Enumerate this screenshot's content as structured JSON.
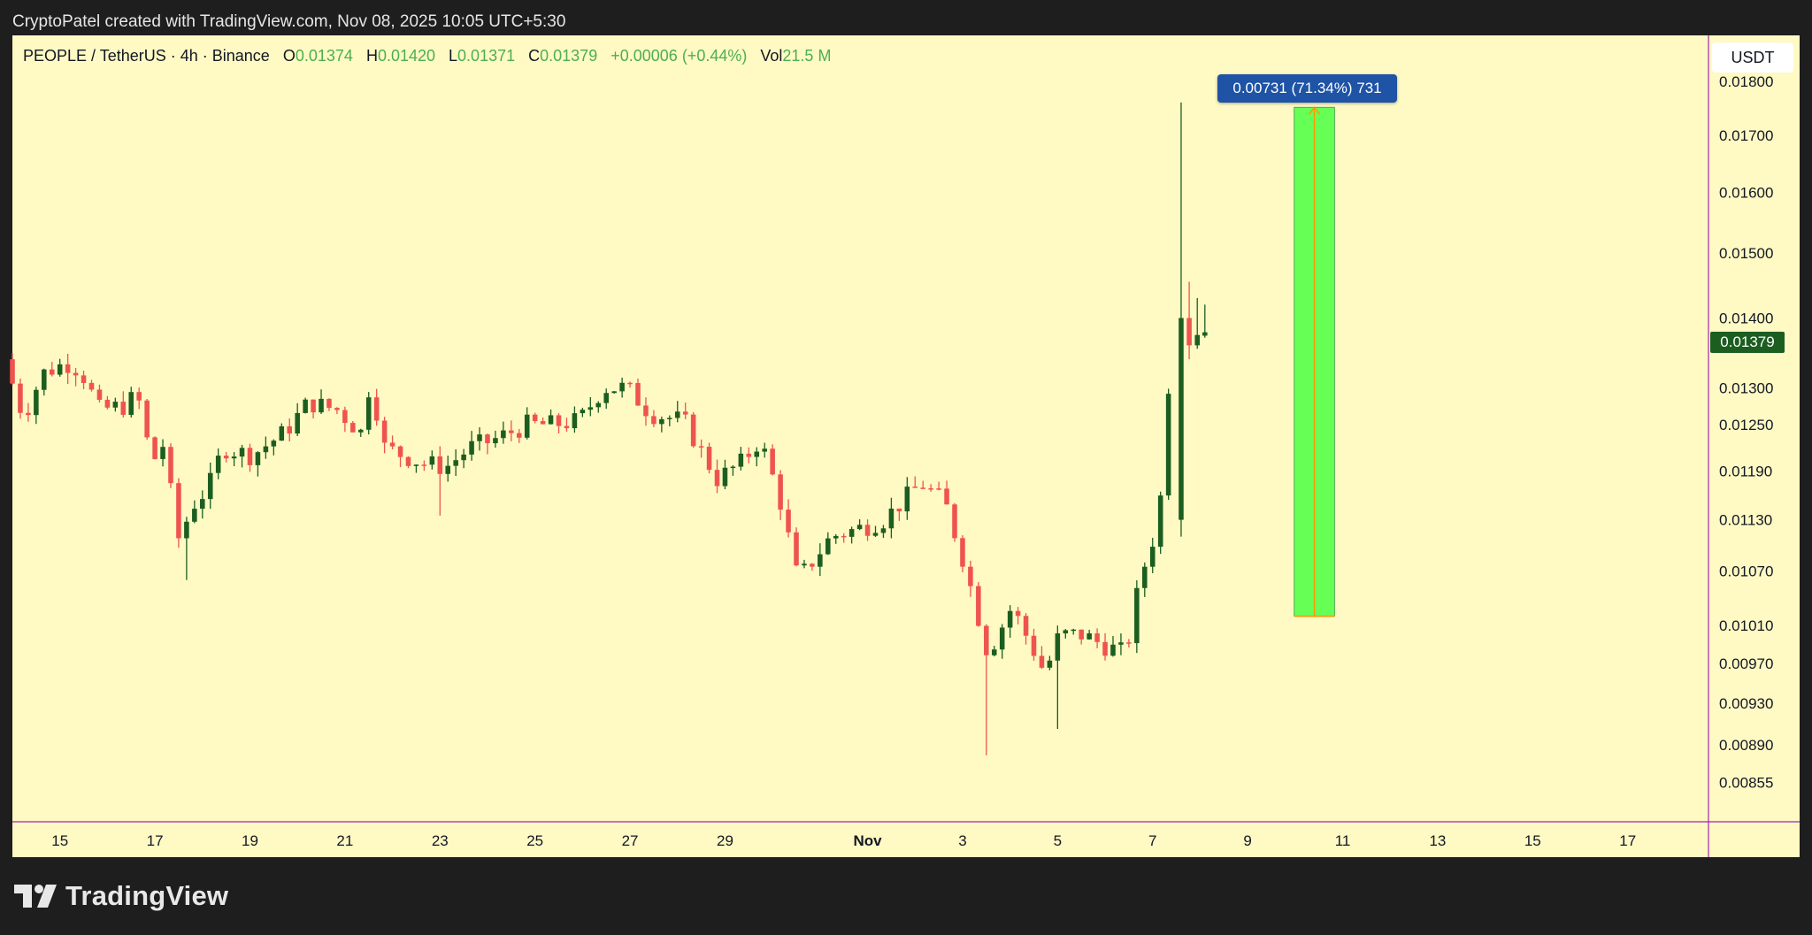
{
  "credit": "CryptoPatel created with TradingView.com, Nov 08, 2025 10:05 UTC+5:30",
  "legend": {
    "symbol": "PEOPLE / TetherUS · 4h · Binance",
    "open_label": "O",
    "open": "0.01374",
    "high_label": "H",
    "high": "0.01420",
    "low_label": "L",
    "low": "0.01371",
    "close_label": "C",
    "close": "0.01379",
    "change": "+0.00006 (+0.44%)",
    "vol_label": "Vol",
    "vol": "21.5 M"
  },
  "currency": "USDT",
  "measure_label": "0.00731 (71.34%) 731",
  "last_price": "0.01379",
  "brand": "TradingView",
  "colors": {
    "background": "#fff9c4",
    "up": "#1b5e20",
    "down": "#ef5350",
    "measure_fill": "#66ff55",
    "measure_line": "#ff9800",
    "axis_line": "#9c27b0"
  },
  "chart_data": {
    "type": "candlestick",
    "scale": "log",
    "ylim": [
      0.0082,
      0.0189
    ],
    "y_ticks": [
      "0.01800",
      "0.01700",
      "0.01600",
      "0.01500",
      "0.01400",
      "0.01300",
      "0.01250",
      "0.01190",
      "0.01130",
      "0.01070",
      "0.01010",
      "0.00970",
      "0.00930",
      "0.00890",
      "0.00855"
    ],
    "x_ticks": [
      {
        "label": "15",
        "day": 15
      },
      {
        "label": "17",
        "day": 17
      },
      {
        "label": "19",
        "day": 19
      },
      {
        "label": "21",
        "day": 21
      },
      {
        "label": "23",
        "day": 23
      },
      {
        "label": "25",
        "day": 25
      },
      {
        "label": "27",
        "day": 27
      },
      {
        "label": "29",
        "day": 29
      },
      {
        "label": "Nov",
        "day": 32
      },
      {
        "label": "3",
        "day": 34
      },
      {
        "label": "5",
        "day": 36
      },
      {
        "label": "7",
        "day": 38
      },
      {
        "label": "9",
        "day": 40
      },
      {
        "label": "11",
        "day": 42
      },
      {
        "label": "13",
        "day": 44
      },
      {
        "label": "15",
        "day": 46
      },
      {
        "label": "17",
        "day": 48
      }
    ],
    "x_range_days": [
      14.0,
      49.7
    ],
    "anchors": [
      {
        "day": 14.0,
        "price": 0.0134
      },
      {
        "day": 14.4,
        "price": 0.0126
      },
      {
        "day": 14.8,
        "price": 0.0132
      },
      {
        "day": 15.3,
        "price": 0.01335
      },
      {
        "day": 15.6,
        "price": 0.01325
      },
      {
        "day": 16.0,
        "price": 0.0127
      },
      {
        "day": 16.5,
        "price": 0.01275
      },
      {
        "day": 16.8,
        "price": 0.0129
      },
      {
        "day": 17.1,
        "price": 0.012
      },
      {
        "day": 17.4,
        "price": 0.0123
      },
      {
        "day": 17.6,
        "price": 0.011
      },
      {
        "day": 18.0,
        "price": 0.0115
      },
      {
        "day": 18.3,
        "price": 0.0117
      },
      {
        "day": 18.6,
        "price": 0.0122
      },
      {
        "day": 19.2,
        "price": 0.0121
      },
      {
        "day": 19.9,
        "price": 0.0124
      },
      {
        "day": 20.4,
        "price": 0.0128
      },
      {
        "day": 21.0,
        "price": 0.0127
      },
      {
        "day": 21.5,
        "price": 0.0124
      },
      {
        "day": 21.7,
        "price": 0.0131
      },
      {
        "day": 22.0,
        "price": 0.0122
      },
      {
        "day": 22.8,
        "price": 0.012
      },
      {
        "day": 23.3,
        "price": 0.01195
      },
      {
        "day": 23.8,
        "price": 0.0122
      },
      {
        "day": 24.3,
        "price": 0.0123
      },
      {
        "day": 25.0,
        "price": 0.0125
      },
      {
        "day": 25.5,
        "price": 0.0125
      },
      {
        "day": 26.1,
        "price": 0.01255
      },
      {
        "day": 26.6,
        "price": 0.013
      },
      {
        "day": 27.1,
        "price": 0.013
      },
      {
        "day": 27.6,
        "price": 0.01265
      },
      {
        "day": 28.3,
        "price": 0.01255
      },
      {
        "day": 29.0,
        "price": 0.0118
      },
      {
        "day": 29.5,
        "price": 0.012
      },
      {
        "day": 29.9,
        "price": 0.0123
      },
      {
        "day": 30.3,
        "price": 0.0116
      },
      {
        "day": 30.7,
        "price": 0.0106
      },
      {
        "day": 31.4,
        "price": 0.0111
      },
      {
        "day": 32.0,
        "price": 0.0112
      },
      {
        "day": 32.5,
        "price": 0.0113
      },
      {
        "day": 33.3,
        "price": 0.01175
      },
      {
        "day": 33.8,
        "price": 0.0115
      },
      {
        "day": 34.2,
        "price": 0.0108
      },
      {
        "day": 34.7,
        "price": 0.0098
      },
      {
        "day": 35.2,
        "price": 0.0103
      },
      {
        "day": 35.6,
        "price": 0.0099
      },
      {
        "day": 35.9,
        "price": 0.0096
      },
      {
        "day": 36.2,
        "price": 0.01
      },
      {
        "day": 36.7,
        "price": 0.01
      },
      {
        "day": 37.1,
        "price": 0.0099
      },
      {
        "day": 37.6,
        "price": 0.0098
      },
      {
        "day": 37.9,
        "price": 0.0106
      },
      {
        "day": 38.3,
        "price": 0.0113
      },
      {
        "day": 38.6,
        "price": 0.014
      },
      {
        "day": 38.8,
        "price": 0.01374
      },
      {
        "day": 39.0,
        "price": 0.01379
      }
    ],
    "special_candles": [
      {
        "day": 38.6,
        "open": 0.0113,
        "high": 0.0176,
        "low": 0.0111,
        "close": 0.014
      },
      {
        "day": 38.77,
        "open": 0.014,
        "high": 0.01455,
        "low": 0.0134,
        "close": 0.0136
      },
      {
        "day": 38.94,
        "open": 0.0136,
        "high": 0.0143,
        "low": 0.01355,
        "close": 0.01375
      },
      {
        "day": 39.1,
        "open": 0.01374,
        "high": 0.0142,
        "low": 0.01371,
        "close": 0.01379
      }
    ],
    "measure": {
      "from_day": 40.98,
      "to_day": 41.83,
      "low": 0.0102,
      "high": 0.01751
    }
  }
}
